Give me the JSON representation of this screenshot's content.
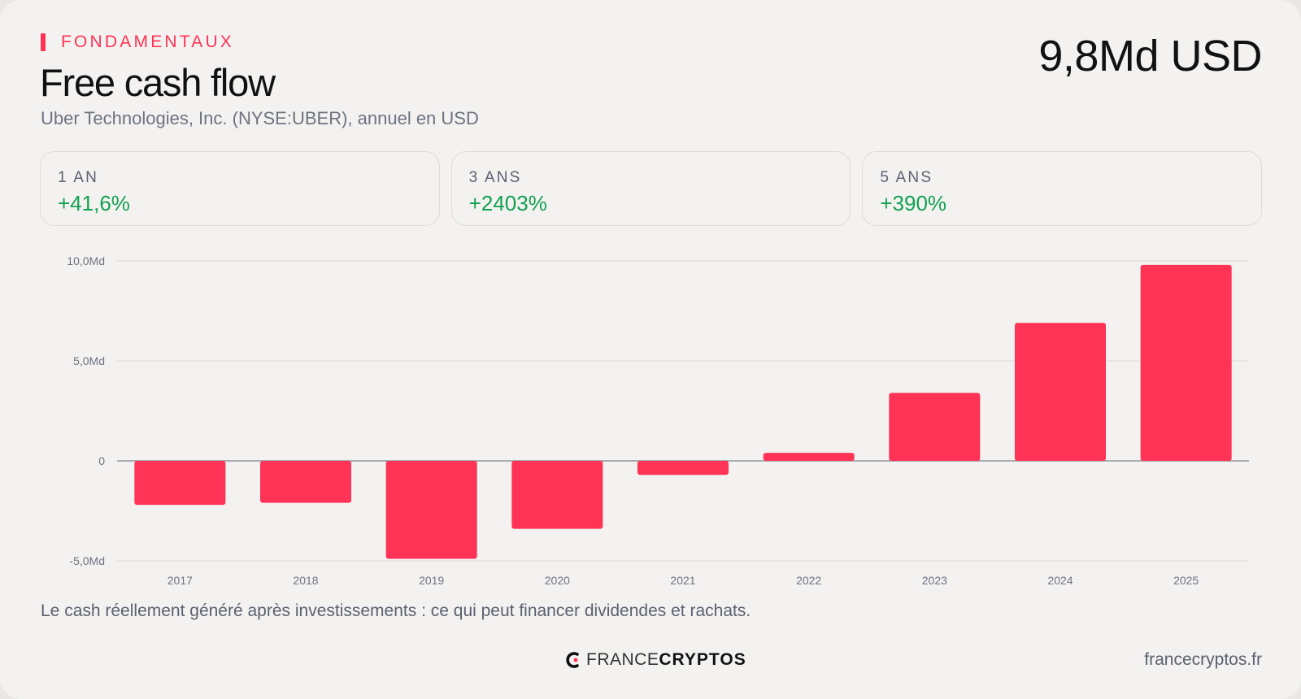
{
  "header": {
    "section": "FONDAMENTAUX",
    "title": "Free cash flow",
    "subtitle": "Uber Technologies, Inc. (NYSE:UBER), annuel en USD",
    "headline_value": "9,8Md USD"
  },
  "stats": [
    {
      "label": "1 AN",
      "value": "+41,6%"
    },
    {
      "label": "3 ANS",
      "value": "+2403%"
    },
    {
      "label": "5 ANS",
      "value": "+390%"
    }
  ],
  "chart_data": {
    "type": "bar",
    "categories": [
      "2017",
      "2018",
      "2019",
      "2020",
      "2021",
      "2022",
      "2023",
      "2024",
      "2025"
    ],
    "values": [
      -2.2,
      -2.1,
      -4.9,
      -3.4,
      -0.7,
      0.4,
      3.4,
      6.9,
      9.8
    ],
    "y_ticks": [
      {
        "value": 10,
        "label": "10,0Md"
      },
      {
        "value": 5,
        "label": "5,0Md"
      },
      {
        "value": 0,
        "label": "0"
      },
      {
        "value": -5,
        "label": "-5,0Md"
      }
    ],
    "ylim": [
      -5,
      10
    ],
    "bar_color": "#ff3355",
    "grid": true
  },
  "caption": "Le cash réellement généré après investissements : ce qui peut financer dividendes et rachats.",
  "footer": {
    "logo_light": "FRANCE",
    "logo_bold": "CRYPTOS",
    "site": "francecryptos.fr"
  },
  "colors": {
    "accent": "#ff3355",
    "positive": "#12a150"
  }
}
